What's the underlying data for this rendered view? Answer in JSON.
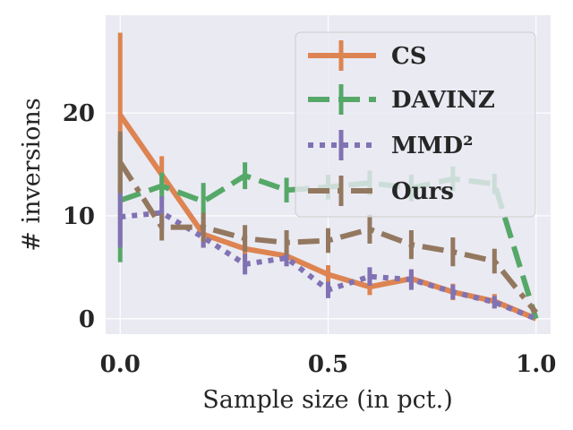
{
  "chart_data": {
    "type": "line",
    "title": "",
    "xlabel": "Sample size (in pct.)",
    "ylabel": "# inversions",
    "xlim": [
      -0.035,
      1.035
    ],
    "ylim": [
      -1.5,
      29.5
    ],
    "xticks": [
      0.0,
      0.5,
      1.0
    ],
    "xtick_labels": [
      "0.0",
      "0.5",
      "1.0"
    ],
    "yticks": [
      0,
      10,
      20
    ],
    "ytick_labels": [
      "0",
      "10",
      "20"
    ],
    "grid": true,
    "legend_position": "top-right",
    "x": [
      0.0,
      0.1,
      0.2,
      0.3,
      0.4,
      0.5,
      0.6,
      0.7,
      0.8,
      0.9,
      1.0
    ],
    "series": [
      {
        "name": "CS",
        "color": "#dd8452",
        "dash": "solid",
        "values": [
          19.8,
          14.0,
          8.2,
          6.8,
          6.1,
          4.3,
          3.1,
          3.9,
          2.6,
          1.7,
          0.0
        ],
        "errors": [
          8.0,
          1.8,
          1.3,
          1.0,
          1.0,
          0.9,
          0.8,
          0.9,
          0.8,
          0.7,
          0.0
        ]
      },
      {
        "name": "DAVINZ",
        "color": "#55a868",
        "dash": "dashed",
        "values": [
          11.5,
          12.9,
          11.4,
          13.9,
          12.5,
          12.8,
          13.2,
          12.7,
          13.6,
          13.1,
          0.0
        ],
        "errors": [
          6.0,
          1.3,
          1.8,
          1.3,
          1.2,
          1.2,
          1.2,
          1.3,
          1.2,
          1.0,
          0.0
        ]
      },
      {
        "name": "MMD²",
        "color": "#8172b3",
        "dash": "dotted",
        "values": [
          9.9,
          10.3,
          7.9,
          5.3,
          5.9,
          2.8,
          4.1,
          3.8,
          2.6,
          1.6,
          0.0
        ],
        "errors": [
          3.0,
          1.6,
          1.0,
          1.0,
          0.8,
          0.8,
          0.9,
          1.0,
          0.7,
          0.6,
          0.0
        ]
      },
      {
        "name": "Ours",
        "color": "#937860",
        "dash": "dashdot",
        "values": [
          15.2,
          8.9,
          8.9,
          7.8,
          7.4,
          7.6,
          8.7,
          7.2,
          6.5,
          5.6,
          0.6
        ],
        "errors": [
          3.0,
          1.3,
          1.4,
          1.3,
          1.2,
          1.2,
          1.4,
          1.4,
          1.4,
          1.2,
          0.0
        ]
      }
    ]
  }
}
